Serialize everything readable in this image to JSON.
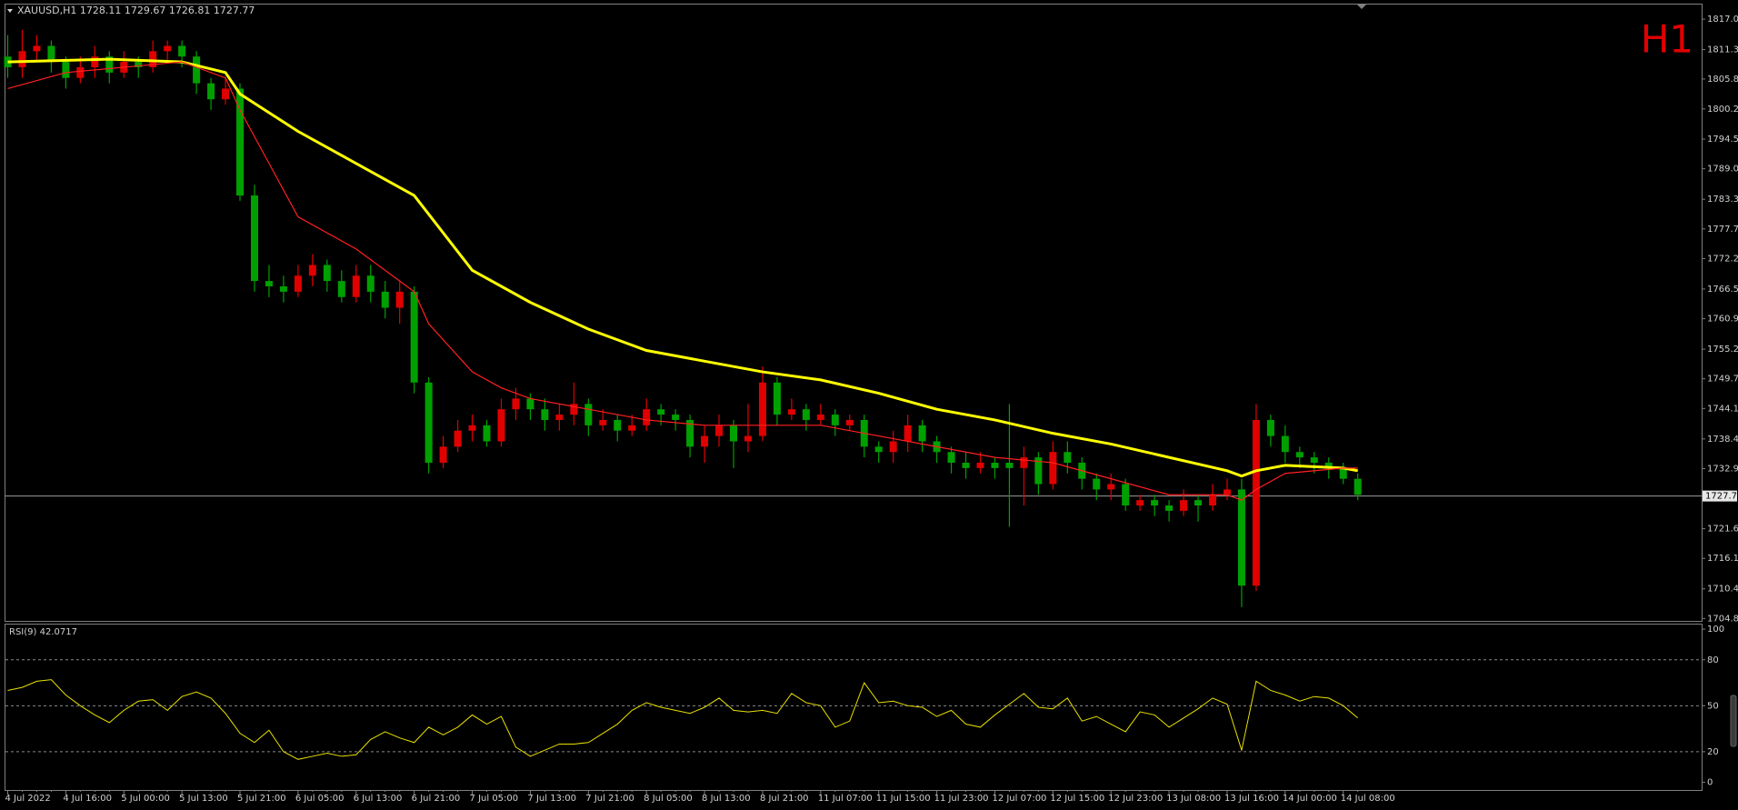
{
  "chart_data": [
    {
      "type": "candlestick",
      "title": "XAUUSD,H1  1728.11 1729.67 1726.81 1727.77",
      "label": "H1",
      "categories": [
        "4 Jul 2022",
        null,
        null,
        null,
        "4 Jul 16:00",
        null,
        null,
        null,
        "5 Jul 00:00",
        null,
        null,
        null,
        "5 Jul 13:00",
        null,
        null,
        null,
        "5 Jul 21:00",
        null,
        null,
        null,
        "6 Jul 05:00",
        null,
        null,
        null,
        "6 Jul 13:00",
        null,
        null,
        null,
        "6 Jul 21:00",
        null,
        null,
        null,
        "7 Jul 05:00",
        null,
        null,
        null,
        "7 Jul 13:00",
        null,
        null,
        null,
        "7 Jul 21:00",
        null,
        null,
        null,
        "8 Jul 05:00",
        null,
        null,
        null,
        "8 Jul 13:00",
        null,
        null,
        null,
        "8 Jul 21:00",
        null,
        null,
        null,
        "11 Jul 07:00",
        null,
        null,
        null,
        "11 Jul 15:00",
        null,
        null,
        null,
        "11 Jul 23:00",
        null,
        null,
        null,
        "12 Jul 07:00",
        null,
        null,
        null,
        "12 Jul 15:00",
        null,
        null,
        null,
        "12 Jul 23:00",
        null,
        null,
        null,
        "13 Jul 08:00",
        null,
        null,
        null,
        "13 Jul 16:00",
        null,
        null,
        null,
        "14 Jul 00:00",
        null,
        null,
        null,
        "14 Jul 08:00",
        null
      ],
      "open": [
        1810,
        1808,
        1811,
        1812,
        1809,
        1806,
        1808,
        1810,
        1807,
        1809,
        1808,
        1811,
        1812,
        1810,
        1805,
        1802,
        1804,
        1784,
        1768,
        1767,
        1766,
        1769,
        1771,
        1768,
        1765,
        1769,
        1766,
        1763,
        1766,
        1749,
        1734,
        1737,
        1740,
        1741,
        1738,
        1744,
        1746,
        1744,
        1742,
        1743,
        1745,
        1741,
        1742,
        1740,
        1741,
        1744,
        1743,
        1742,
        1737,
        1739,
        1741,
        1738,
        1739,
        1749,
        1743,
        1744,
        1742,
        1743,
        1741,
        1742,
        1737,
        1736,
        1738,
        1741,
        1738,
        1736,
        1734,
        1733,
        1734,
        1734,
        1733,
        1735,
        1730,
        1736,
        1734,
        1731,
        1729,
        1730,
        1726,
        1727,
        1726,
        1725,
        1727,
        1726,
        1728,
        1729,
        1711,
        1742,
        1739,
        1736,
        1735,
        1734,
        1733,
        1731
      ],
      "high": [
        1814,
        1815,
        1814,
        1813,
        1810,
        1810,
        1812,
        1811,
        1811,
        1810,
        1813,
        1813,
        1813,
        1811,
        1806,
        1806,
        1805,
        1786,
        1771,
        1769,
        1771,
        1773,
        1772,
        1770,
        1771,
        1771,
        1768,
        1768,
        1767,
        1750,
        1739,
        1742,
        1743,
        1742,
        1746,
        1748,
        1747,
        1746,
        1745,
        1749,
        1746,
        1744,
        1743,
        1743,
        1746,
        1745,
        1744,
        1743,
        1741,
        1743,
        1742,
        1745,
        1752,
        1750,
        1746,
        1745,
        1745,
        1744,
        1743,
        1743,
        1738,
        1740,
        1743,
        1742,
        1739,
        1737,
        1736,
        1736,
        1735,
        1745,
        1737,
        1736,
        1738,
        1738,
        1735,
        1732,
        1732,
        1731,
        1728,
        1728,
        1727,
        1729,
        1728,
        1730,
        1731,
        1731,
        1745,
        1743,
        1741,
        1737,
        1736,
        1735,
        1734,
        1732
      ],
      "low": [
        1806,
        1806,
        1809,
        1807,
        1804,
        1805,
        1806,
        1805,
        1806,
        1806,
        1807,
        1809,
        1808,
        1803,
        1800,
        1801,
        1783,
        1766,
        1765,
        1764,
        1765,
        1767,
        1766,
        1764,
        1764,
        1764,
        1761,
        1760,
        1747,
        1732,
        1733,
        1736,
        1738,
        1737,
        1737,
        1742,
        1742,
        1740,
        1740,
        1741,
        1739,
        1740,
        1738,
        1739,
        1740,
        1741,
        1740,
        1735,
        1734,
        1737,
        1733,
        1736,
        1738,
        1741,
        1742,
        1740,
        1741,
        1739,
        1740,
        1735,
        1734,
        1734,
        1736,
        1736,
        1734,
        1732,
        1731,
        1732,
        1731,
        1722,
        1726,
        1728,
        1729,
        1732,
        1729,
        1727,
        1727,
        1725,
        1725,
        1724,
        1723,
        1724,
        1723,
        1725,
        1727,
        1707,
        1710,
        1737,
        1734,
        1733,
        1732,
        1731,
        1730,
        1727
      ],
      "close": [
        1808,
        1811,
        1812,
        1809,
        1806,
        1808,
        1810,
        1807,
        1809,
        1808,
        1811,
        1812,
        1810,
        1805,
        1802,
        1804,
        1784,
        1768,
        1767,
        1766,
        1769,
        1771,
        1768,
        1765,
        1769,
        1766,
        1763,
        1766,
        1749,
        1734,
        1737,
        1740,
        1741,
        1738,
        1744,
        1746,
        1744,
        1742,
        1743,
        1745,
        1741,
        1742,
        1740,
        1741,
        1744,
        1743,
        1742,
        1737,
        1739,
        1741,
        1738,
        1739,
        1749,
        1743,
        1744,
        1742,
        1743,
        1741,
        1742,
        1737,
        1736,
        1738,
        1741,
        1738,
        1736,
        1734,
        1733,
        1734,
        1733,
        1733,
        1735,
        1730,
        1736,
        1734,
        1731,
        1729,
        1730,
        1726,
        1727,
        1726,
        1725,
        1727,
        1726,
        1728,
        1729,
        1711,
        1742,
        1739,
        1736,
        1735,
        1734,
        1733,
        1731,
        1728
      ],
      "up_color": "#e00000",
      "down_color": "#00a000",
      "series": [
        {
          "color": "#ffff00",
          "x": [
            0,
            7,
            12,
            15,
            16,
            20,
            24,
            28,
            32,
            36,
            40,
            44,
            48,
            52,
            56,
            60,
            64,
            68,
            72,
            76,
            80,
            84,
            85,
            86,
            88,
            92,
            93
          ],
          "values": [
            1809,
            1809.5,
            1809,
            1807,
            1803,
            1796,
            1790,
            1784,
            1770,
            1764,
            1759,
            1755,
            1753,
            1751,
            1749.5,
            1747,
            1744,
            1742,
            1739.5,
            1737.5,
            1735,
            1732.5,
            1731.5,
            1732.5,
            1733.5,
            1733,
            1732.5
          ]
        },
        {
          "color": "#ff2020",
          "x": [
            0,
            4,
            8,
            12,
            15,
            16,
            18,
            20,
            24,
            28,
            29,
            32,
            34,
            36,
            40,
            44,
            48,
            52,
            56,
            60,
            64,
            68,
            72,
            76,
            80,
            84,
            85,
            86,
            88,
            92,
            93
          ],
          "values": [
            1804,
            1807,
            1808,
            1809,
            1806,
            1800,
            1790,
            1780,
            1774,
            1766,
            1760,
            1751,
            1748,
            1746,
            1744,
            1742,
            1741,
            1741,
            1741,
            1739,
            1737,
            1735,
            1734,
            1731,
            1728,
            1728,
            1727,
            1729,
            1732,
            1733,
            1733
          ]
        }
      ],
      "price_line": 1727.77,
      "ylim": [
        1704.4,
        1819.9
      ],
      "yticks": [
        {
          "value": 1817,
          "label": "1817.00"
        },
        {
          "value": 1811.3,
          "label": "1811.30"
        },
        {
          "value": 1805.8,
          "label": "1805.80"
        },
        {
          "value": 1800.2,
          "label": "1800.20"
        },
        1794.55,
        {
          "value": 1789,
          "label": "1789.00"
        },
        {
          "value": 1783.3,
          "label": "1783.30"
        },
        1777.75,
        {
          "value": 1772.2,
          "label": "1772.20"
        },
        {
          "value": 1766.5,
          "label": "1766.50"
        },
        1760.95,
        1755.25,
        {
          "value": 1749.7,
          "label": "1749.70"
        },
        1744.15,
        1738.45,
        {
          "value": 1732.9,
          "label": "1732.90"
        },
        1721.65,
        {
          "value": 1716.1,
          "label": "1716.10"
        },
        {
          "value": 1710.4,
          "label": "1710.40"
        },
        1704.85
      ]
    },
    {
      "type": "line",
      "title": "RSI(9) 42.0717",
      "color": "#e8e000",
      "values": [
        60,
        62,
        66,
        67,
        57,
        50,
        44,
        39,
        47,
        53,
        54,
        47,
        56,
        59,
        55,
        45,
        32,
        26,
        34,
        20,
        15,
        17,
        19,
        17,
        18,
        28,
        33,
        29,
        26,
        36,
        31,
        36,
        44,
        38,
        43,
        23,
        17,
        21,
        25,
        25,
        26,
        32,
        38,
        47,
        52,
        49,
        47,
        45,
        49,
        55,
        47,
        46,
        47,
        45,
        58,
        52,
        50,
        36,
        40,
        65,
        52,
        53,
        50,
        49,
        43,
        47,
        38,
        36,
        44,
        51,
        58,
        49,
        48,
        55,
        40,
        43,
        38,
        33,
        46,
        44,
        36,
        42,
        48,
        55,
        51,
        21,
        66,
        60,
        57,
        53,
        56,
        55,
        50,
        42
      ],
      "levels": [
        80,
        50,
        20
      ],
      "ylim": [
        -5,
        103.6
      ],
      "yticks": [
        100,
        80,
        50,
        20,
        0
      ]
    }
  ]
}
